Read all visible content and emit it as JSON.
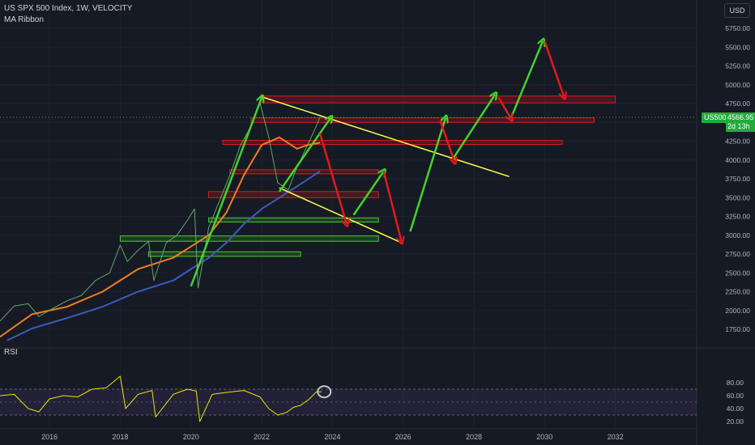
{
  "header": {
    "title": "US SPX 500 Index, 1W, VELOCITY",
    "indicator": "MA Ribbon",
    "currency": "USD",
    "symbol_tag": "US500",
    "price_tag": "4566.95",
    "countdown_tag": "2d 13h"
  },
  "rsi_panel": {
    "label": "RSI"
  },
  "colors": {
    "background": "#161a25",
    "ma_fast": "#f57c1f",
    "ma_slow": "#3d5bbf",
    "rsi_line": "#e6e600",
    "rsi_band": "#7e57c2",
    "up_arrow": "#46d22c",
    "down_arrow": "#e3191e",
    "channel": "#ffff4d",
    "resistance_zone": "#e3191e",
    "support_zone": "#46d22c"
  },
  "chart_data": [
    {
      "type": "line",
      "title": "US SPX 500 Index, 1W, VELOCITY",
      "x_axis": {
        "ticks": [
          "2016",
          "2018",
          "2020",
          "2022",
          "2024",
          "2026",
          "2028",
          "2030",
          "2032"
        ],
        "range": [
          2014.6,
          2034.3
        ]
      },
      "y_axis": {
        "ticks": [
          1750,
          2000,
          2250,
          2500,
          2750,
          3000,
          3250,
          3500,
          3750,
          4000,
          4250,
          4500,
          4750,
          5000,
          5250,
          5500,
          5750
        ],
        "range": [
          1570,
          6060
        ]
      },
      "series": [
        {
          "name": "US SPX 500 Index",
          "x": [
            2014.6,
            2015.0,
            2015.4,
            2015.7,
            2016.1,
            2016.5,
            2016.9,
            2017.3,
            2017.7,
            2018.0,
            2018.2,
            2018.5,
            2018.8,
            2018.95,
            2019.3,
            2019.6,
            2019.9,
            2020.1,
            2020.2,
            2020.5,
            2020.8,
            2021.1,
            2021.4,
            2021.7,
            2021.95,
            2022.2,
            2022.45,
            2022.75,
            2022.95,
            2023.2,
            2023.45,
            2023.65
          ],
          "values": [
            1860,
            2060,
            2090,
            1920,
            2030,
            2130,
            2200,
            2400,
            2500,
            2870,
            2650,
            2800,
            2920,
            2400,
            2900,
            3000,
            3200,
            3350,
            2300,
            3100,
            3450,
            3800,
            4200,
            4450,
            4760,
            4300,
            3700,
            3600,
            3850,
            4100,
            4350,
            4570
          ]
        },
        {
          "name": "MA Ribbon fast",
          "x": [
            2014.6,
            2015.5,
            2016.5,
            2017.5,
            2018.5,
            2019.5,
            2020.0,
            2020.5,
            2021.0,
            2021.5,
            2022.0,
            2022.5,
            2023.0,
            2023.3,
            2023.65
          ],
          "values": [
            1650,
            1950,
            2050,
            2250,
            2550,
            2700,
            2850,
            3000,
            3300,
            3800,
            4200,
            4300,
            4150,
            4200,
            4230
          ]
        },
        {
          "name": "MA Ribbon slow",
          "x": [
            2014.8,
            2015.5,
            2016.5,
            2017.5,
            2018.5,
            2019.5,
            2020.5,
            2021.0,
            2021.5,
            2022.0,
            2022.5,
            2023.0,
            2023.65
          ],
          "values": [
            1600,
            1760,
            1900,
            2050,
            2250,
            2400,
            2700,
            2900,
            3150,
            3350,
            3500,
            3650,
            3850
          ]
        }
      ],
      "zones": {
        "resistance": [
          {
            "x": [
              2022.0,
              2032.0
            ],
            "y": [
              4760,
              4850
            ]
          },
          {
            "x": [
              2021.7,
              2031.4
            ],
            "y": [
              4500,
              4560
            ]
          },
          {
            "x": [
              2020.9,
              2030.5
            ],
            "y": [
              4210,
              4260
            ]
          },
          {
            "x": [
              2021.1,
              2025.3
            ],
            "y": [
              3820,
              3870
            ]
          },
          {
            "x": [
              2020.5,
              2025.3
            ],
            "y": [
              3500,
              3580
            ]
          }
        ],
        "support": [
          {
            "x": [
              2020.5,
              2025.3
            ],
            "y": [
              3190,
              3230
            ]
          },
          {
            "x": [
              2018.0,
              2025.3
            ],
            "y": [
              2920,
              2990
            ]
          },
          {
            "x": [
              2018.8,
              2023.1
            ],
            "y": [
              2720,
              2780
            ]
          }
        ]
      },
      "channel_lines": [
        {
          "x": [
            2022.0,
            2029.0
          ],
          "y": [
            4840,
            3780
          ]
        },
        {
          "x": [
            2022.5,
            2026.0
          ],
          "y": [
            3630,
            2890
          ]
        }
      ],
      "projection_up": [
        {
          "x": [
            2020.0,
            2022.0
          ],
          "y": [
            2320,
            4830
          ]
        },
        {
          "x": [
            2022.5,
            2023.95
          ],
          "y": [
            3580,
            4560
          ]
        },
        {
          "x": [
            2024.6,
            2025.45
          ],
          "y": [
            3270,
            3850
          ]
        },
        {
          "x": [
            2026.2,
            2027.2
          ],
          "y": [
            3050,
            4560
          ]
        },
        {
          "x": [
            2027.4,
            2028.6
          ],
          "y": [
            4010,
            4870
          ]
        },
        {
          "x": [
            2029.05,
            2029.95
          ],
          "y": [
            4560,
            5580
          ]
        }
      ],
      "projection_down": [
        {
          "x": [
            2023.65,
            2024.4
          ],
          "y": [
            4350,
            3150
          ]
        },
        {
          "x": [
            2025.45,
            2025.95
          ],
          "y": [
            3850,
            2920
          ]
        },
        {
          "x": [
            2027.05,
            2027.45
          ],
          "y": [
            4520,
            3980
          ]
        },
        {
          "x": [
            2028.7,
            2029.05
          ],
          "y": [
            4830,
            4550
          ]
        },
        {
          "x": [
            2030.0,
            2030.55
          ],
          "y": [
            5580,
            4840
          ]
        }
      ]
    },
    {
      "type": "line",
      "title": "RSI",
      "y_axis": {
        "ticks": [
          20,
          40,
          60,
          80
        ],
        "range": [
          14,
          90
        ]
      },
      "band": [
        30,
        70
      ],
      "midline": 50,
      "series": [
        {
          "name": "RSI",
          "x": [
            2014.6,
            2015.0,
            2015.4,
            2015.7,
            2016.0,
            2016.4,
            2016.8,
            2017.2,
            2017.6,
            2018.0,
            2018.15,
            2018.5,
            2018.9,
            2019.0,
            2019.5,
            2019.9,
            2020.15,
            2020.25,
            2020.6,
            2021.0,
            2021.5,
            2021.95,
            2022.2,
            2022.45,
            2022.7,
            2022.9,
            2023.1,
            2023.35,
            2023.55,
            2023.7
          ],
          "values": [
            60,
            62,
            40,
            35,
            55,
            60,
            58,
            70,
            72,
            90,
            40,
            62,
            68,
            27,
            62,
            70,
            67,
            20,
            62,
            65,
            68,
            58,
            40,
            30,
            34,
            42,
            45,
            55,
            66,
            66
          ]
        }
      ]
    }
  ]
}
